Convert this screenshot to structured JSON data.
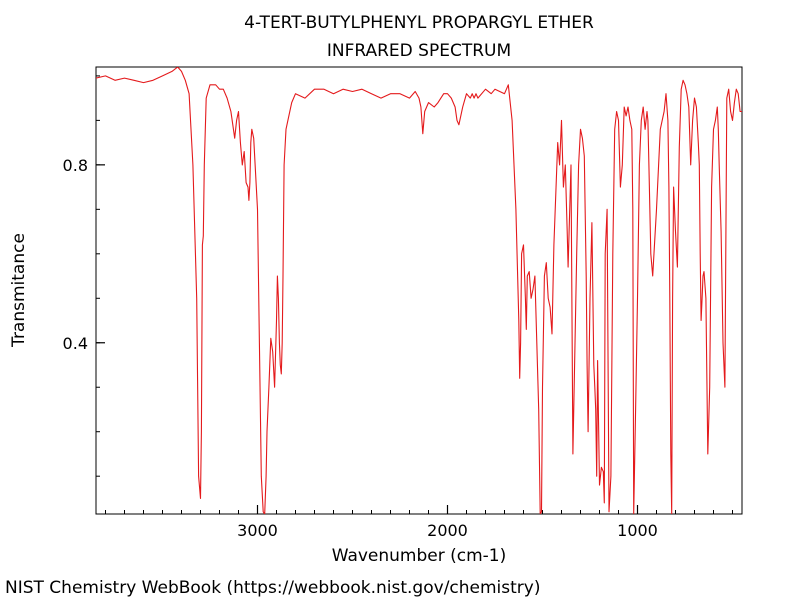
{
  "chart_data": {
    "type": "line",
    "title": "4-TERT-BUTYLPHENYL PROPARGYL ETHER",
    "subtitle": "INFRARED SPECTRUM",
    "xlabel": "Wavenumber (cm-1)",
    "ylabel": "Transmitance",
    "xlim": [
      3850,
      450
    ],
    "ylim": [
      0.015,
      1.02
    ],
    "x_reversed": true,
    "grid": false,
    "x_ticks": [
      {
        "value": 3000,
        "label": "3000"
      },
      {
        "value": 2000,
        "label": "2000"
      },
      {
        "value": 1000,
        "label": "1000"
      }
    ],
    "y_ticks": [
      {
        "value": 0.8,
        "label": "0.8"
      },
      {
        "value": 0.4,
        "label": "0.4"
      }
    ],
    "series": [
      {
        "color": "#e41a1c",
        "x": [
          3850,
          3800,
          3750,
          3700,
          3650,
          3600,
          3550,
          3500,
          3450,
          3420,
          3400,
          3380,
          3360,
          3340,
          3320,
          3310,
          3300,
          3295,
          3290,
          3285,
          3280,
          3270,
          3250,
          3220,
          3200,
          3180,
          3160,
          3140,
          3120,
          3110,
          3100,
          3090,
          3080,
          3070,
          3060,
          3050,
          3045,
          3040,
          3035,
          3030,
          3020,
          3000,
          2990,
          2980,
          2970,
          2962,
          2955,
          2950,
          2940,
          2930,
          2920,
          2910,
          2900,
          2895,
          2890,
          2885,
          2880,
          2875,
          2870,
          2866,
          2860,
          2850,
          2840,
          2820,
          2800,
          2750,
          2700,
          2650,
          2600,
          2550,
          2500,
          2450,
          2400,
          2350,
          2300,
          2250,
          2200,
          2170,
          2150,
          2140,
          2130,
          2120,
          2100,
          2070,
          2050,
          2020,
          2000,
          1980,
          1960,
          1950,
          1940,
          1920,
          1900,
          1880,
          1870,
          1860,
          1850,
          1840,
          1800,
          1770,
          1750,
          1700,
          1680,
          1660,
          1640,
          1625,
          1620,
          1615,
          1610,
          1600,
          1590,
          1585,
          1580,
          1570,
          1560,
          1550,
          1540,
          1530,
          1520,
          1512,
          1505,
          1500,
          1490,
          1480,
          1470,
          1460,
          1450,
          1440,
          1420,
          1410,
          1400,
          1390,
          1380,
          1370,
          1365,
          1360,
          1350,
          1340,
          1320,
          1310,
          1300,
          1290,
          1280,
          1270,
          1265,
          1260,
          1250,
          1240,
          1230,
          1225,
          1220,
          1215,
          1210,
          1200,
          1190,
          1180,
          1175,
          1170,
          1160,
          1150,
          1140,
          1130,
          1120,
          1110,
          1100,
          1090,
          1080,
          1070,
          1060,
          1050,
          1040,
          1030,
          1025,
          1020,
          1010,
          1000,
          990,
          980,
          970,
          960,
          950,
          945,
          940,
          930,
          920,
          900,
          880,
          860,
          850,
          840,
          835,
          830,
          825,
          820,
          815,
          810,
          800,
          790,
          780,
          770,
          760,
          750,
          740,
          730,
          720,
          710,
          700,
          690,
          680,
          675,
          670,
          665,
          660,
          655,
          650,
          640,
          630,
          620,
          610,
          600,
          590,
          580,
          575,
          570,
          560,
          550,
          540,
          530,
          520,
          510,
          500,
          490,
          480,
          470,
          460,
          450
        ],
        "y": [
          0.995,
          1.0,
          0.99,
          0.995,
          0.99,
          0.985,
          0.99,
          1.0,
          1.01,
          1.02,
          1.01,
          0.99,
          0.96,
          0.8,
          0.5,
          0.1,
          0.05,
          0.2,
          0.62,
          0.64,
          0.8,
          0.95,
          0.98,
          0.98,
          0.97,
          0.97,
          0.95,
          0.92,
          0.86,
          0.9,
          0.92,
          0.85,
          0.8,
          0.83,
          0.76,
          0.75,
          0.72,
          0.76,
          0.85,
          0.88,
          0.86,
          0.7,
          0.4,
          0.1,
          0.02,
          0.015,
          0.1,
          0.2,
          0.3,
          0.41,
          0.38,
          0.3,
          0.45,
          0.55,
          0.5,
          0.4,
          0.35,
          0.33,
          0.4,
          0.55,
          0.8,
          0.88,
          0.9,
          0.94,
          0.96,
          0.95,
          0.97,
          0.97,
          0.96,
          0.97,
          0.965,
          0.97,
          0.96,
          0.95,
          0.96,
          0.96,
          0.95,
          0.965,
          0.95,
          0.93,
          0.87,
          0.92,
          0.94,
          0.93,
          0.94,
          0.96,
          0.96,
          0.95,
          0.93,
          0.9,
          0.89,
          0.93,
          0.96,
          0.95,
          0.96,
          0.95,
          0.96,
          0.95,
          0.97,
          0.96,
          0.97,
          0.96,
          0.98,
          0.9,
          0.7,
          0.45,
          0.32,
          0.4,
          0.6,
          0.62,
          0.5,
          0.43,
          0.55,
          0.56,
          0.5,
          0.52,
          0.55,
          0.4,
          0.25,
          0.015,
          0.02,
          0.3,
          0.55,
          0.58,
          0.5,
          0.48,
          0.42,
          0.62,
          0.85,
          0.8,
          0.9,
          0.75,
          0.8,
          0.65,
          0.57,
          0.65,
          0.8,
          0.15,
          0.6,
          0.8,
          0.88,
          0.86,
          0.82,
          0.55,
          0.35,
          0.2,
          0.5,
          0.67,
          0.35,
          0.3,
          0.25,
          0.1,
          0.36,
          0.08,
          0.12,
          0.11,
          0.04,
          0.6,
          0.7,
          0.02,
          0.1,
          0.6,
          0.88,
          0.92,
          0.9,
          0.75,
          0.8,
          0.93,
          0.91,
          0.93,
          0.9,
          0.88,
          0.7,
          0.015,
          0.25,
          0.5,
          0.8,
          0.9,
          0.93,
          0.88,
          0.92,
          0.9,
          0.8,
          0.6,
          0.55,
          0.7,
          0.88,
          0.92,
          0.96,
          0.9,
          0.75,
          0.5,
          0.15,
          0.015,
          0.5,
          0.75,
          0.65,
          0.57,
          0.84,
          0.97,
          0.99,
          0.98,
          0.96,
          0.93,
          0.8,
          0.9,
          0.95,
          0.93,
          0.85,
          0.8,
          0.6,
          0.45,
          0.5,
          0.55,
          0.56,
          0.5,
          0.15,
          0.3,
          0.75,
          0.88,
          0.9,
          0.93,
          0.88,
          0.8,
          0.65,
          0.4,
          0.3,
          0.95,
          0.97,
          0.92,
          0.9,
          0.94,
          0.97,
          0.96,
          0.92,
          0.92
        ]
      }
    ]
  },
  "footer": {
    "attribution": "NIST Chemistry WebBook (https://webbook.nist.gov/chemistry)"
  }
}
